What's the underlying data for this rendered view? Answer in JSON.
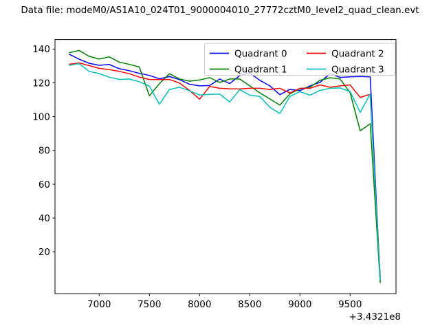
{
  "figure_title": "Data file: modeM0/AS1A10_024T01_9000004010_27772cztM0_level2_quad_clean.evt",
  "chart_data": {
    "type": "line",
    "title": "Data file: modeM0/AS1A10_024T01_9000004010_27772cztM0_level2_quad_clean.evt",
    "xlabel": "",
    "ylabel": "",
    "x_offset_label": "+3.4321e8",
    "xlim": [
      6560,
      9957
    ],
    "ylim": [
      -4.8,
      145.6
    ],
    "xticks": [
      7000,
      7500,
      8000,
      8500,
      9000,
      9500
    ],
    "yticks": [
      20,
      40,
      60,
      80,
      100,
      120,
      140
    ],
    "grid": false,
    "legend_position": "upper right",
    "legend_columns": 2,
    "x": [
      6700,
      6800,
      6900,
      7000,
      7100,
      7200,
      7300,
      7400,
      7500,
      7600,
      7700,
      7800,
      7900,
      8000,
      8100,
      8200,
      8300,
      8400,
      8500,
      8600,
      8700,
      8800,
      8900,
      9000,
      9100,
      9200,
      9300,
      9400,
      9500,
      9600,
      9700,
      9800
    ],
    "series": [
      {
        "name": "Quadrant 0",
        "color": "#0000ff",
        "values": [
          137.0,
          134.0,
          131.6,
          130.4,
          130.9,
          128.4,
          127.2,
          125.6,
          124.4,
          122.4,
          123.7,
          121.9,
          119.2,
          118.2,
          118.4,
          122.3,
          119.6,
          124.3,
          125.8,
          121.5,
          118.2,
          113.0,
          116.1,
          115.4,
          118.2,
          120.3,
          125.5,
          123.2,
          123.6,
          123.8,
          123.5,
          2.5
        ]
      },
      {
        "name": "Quadrant 1",
        "color": "#008000",
        "values": [
          137.8,
          139.2,
          135.7,
          134.1,
          135.4,
          132.3,
          130.9,
          129.4,
          112.4,
          119.5,
          125.4,
          122.3,
          121.0,
          121.7,
          123.1,
          120.2,
          122.3,
          122.3,
          118.2,
          114.1,
          110.5,
          106.8,
          113.5,
          116.5,
          117.4,
          121.5,
          123.0,
          122.3,
          114.1,
          91.7,
          95.8,
          1.5
        ]
      },
      {
        "name": "Quadrant 2",
        "color": "#ff0000",
        "values": [
          131.0,
          131.8,
          130.2,
          128.6,
          127.8,
          126.8,
          125.4,
          123.4,
          122.0,
          121.9,
          122.0,
          119.9,
          115.5,
          110.3,
          117.9,
          116.8,
          116.5,
          116.4,
          116.8,
          116.8,
          116.1,
          116.8,
          114.0,
          116.8,
          116.8,
          118.8,
          117.4,
          118.2,
          118.8,
          111.4,
          113.2,
          5.0
        ]
      },
      {
        "name": "Quadrant 3",
        "color": "#00bfbf",
        "values": [
          130.3,
          131.4,
          126.8,
          125.5,
          123.4,
          122.0,
          122.3,
          120.7,
          118.1,
          107.3,
          116.1,
          117.4,
          115.3,
          112.8,
          113.2,
          113.4,
          108.7,
          116.0,
          112.7,
          112.0,
          105.5,
          101.9,
          112.0,
          114.8,
          112.7,
          115.5,
          116.8,
          117.0,
          114.8,
          102.5,
          113.4,
          3.0
        ]
      }
    ]
  }
}
